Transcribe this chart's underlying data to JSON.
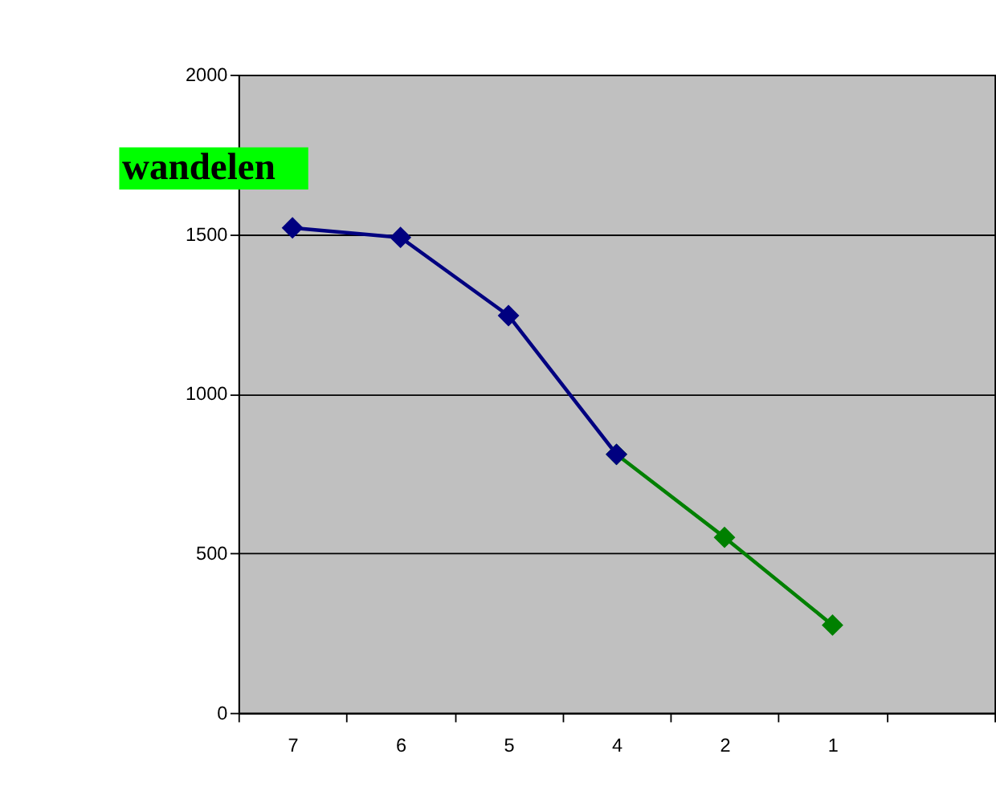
{
  "chart_data": {
    "type": "line",
    "categories": [
      "7",
      "6",
      "5",
      "4",
      "2",
      "1",
      null
    ],
    "series": [
      {
        "color": "#000080",
        "values": [
          1520,
          1490,
          1245,
          810,
          null,
          null,
          null
        ]
      },
      {
        "color": "#008000",
        "values": [
          null,
          null,
          null,
          810,
          550,
          275,
          null
        ]
      }
    ],
    "ylim": [
      0,
      2000
    ],
    "yticks": [
      0,
      500,
      1000,
      1500,
      2000
    ],
    "grid": "y",
    "marker": "diamond",
    "line_style": "solid",
    "annotations": [
      "wandelen"
    ]
  }
}
